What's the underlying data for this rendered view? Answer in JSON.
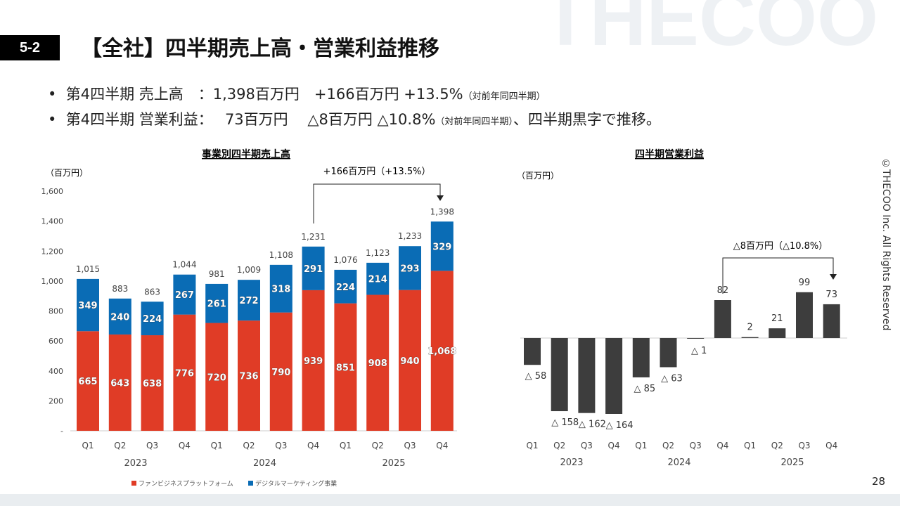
{
  "watermark": "THECOO",
  "section": "5-2",
  "title": "【全社】四半期売上高・営業利益推移",
  "bullets": [
    {
      "main": "•  第4四半期 売上高　：1,398百万円　+166百万円 +13.5%",
      "note": "（対前年同四半期）",
      "tail": ""
    },
    {
      "main": "•  第4四半期 営業利益：　 73百万円　 △8百万円 △10.8%",
      "note": "（対前年同四半期）",
      "tail": "、四半期黒字で推移。"
    }
  ],
  "copyright": "©THECOO Inc. All Rights Reserved",
  "page_number": "28",
  "chart_data": [
    {
      "type": "bar",
      "stacked": true,
      "title": "事業別四半期売上高",
      "ylabel": "（百万円）",
      "ylim": [
        0,
        1600
      ],
      "yticks": [
        "-",
        "200",
        "400",
        "600",
        "800",
        "1,000",
        "1,200",
        "1,400",
        "1,600"
      ],
      "categories": [
        "Q1",
        "Q2",
        "Q3",
        "Q4",
        "Q1",
        "Q2",
        "Q3",
        "Q4",
        "Q1",
        "Q2",
        "Q3",
        "Q4"
      ],
      "years": [
        "2023",
        "2024",
        "2025"
      ],
      "series": [
        {
          "name": "ファンビジネスプラットフォーム",
          "color": "#e03c26",
          "values": [
            665,
            643,
            638,
            776,
            720,
            736,
            790,
            939,
            851,
            908,
            940,
            1068
          ]
        },
        {
          "name": "デジタルマーケティング事業",
          "color": "#0a6cb5",
          "values": [
            349,
            240,
            224,
            267,
            261,
            272,
            318,
            291,
            224,
            214,
            293,
            329
          ]
        }
      ],
      "totals": [
        1015,
        883,
        863,
        1044,
        981,
        1009,
        1108,
        1231,
        1076,
        1123,
        1233,
        1398
      ],
      "annotation": "+166百万円（+13.5%）",
      "legend": "bottom"
    },
    {
      "type": "bar",
      "title": "四半期営業利益",
      "ylabel": "（百万円）",
      "color": "#3d3d3d",
      "categories": [
        "Q1",
        "Q2",
        "Q3",
        "Q4",
        "Q1",
        "Q2",
        "Q3",
        "Q4",
        "Q1",
        "Q2",
        "Q3",
        "Q4"
      ],
      "years": [
        "2023",
        "2024",
        "2025"
      ],
      "values": [
        -58,
        -158,
        -162,
        -164,
        -85,
        -63,
        -1,
        82,
        2,
        21,
        99,
        73
      ],
      "annotation": "△8百万円（△10.8%）"
    }
  ]
}
